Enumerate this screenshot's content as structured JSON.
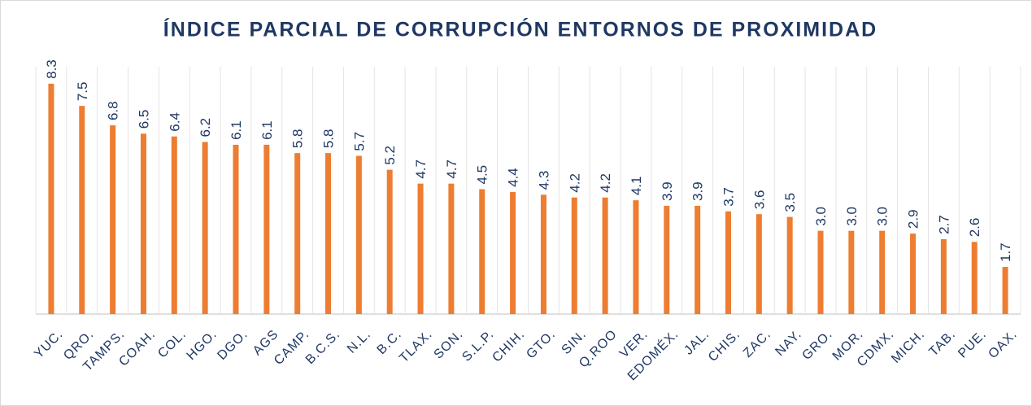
{
  "chart_data": {
    "type": "bar",
    "title": "ÍNDICE PARCIAL DE CORRUPCIÓN ENTORNOS DE PROXIMIDAD",
    "categories": [
      "YUC.",
      "QRO.",
      "TAMPS.",
      "COAH.",
      "COL.",
      "HGO.",
      "DGO.",
      "AGS",
      "CAMP.",
      "B.C.S.",
      "N.L.",
      "B.C.",
      "TLAX.",
      "SON.",
      "S.L.P.",
      "CHIH.",
      "GTO.",
      "SIN.",
      "Q.ROO",
      "VER.",
      "EDOMÉX.",
      "JAL.",
      "CHIS.",
      "ZAC.",
      "NAY.",
      "GRO.",
      "MOR.",
      "CDMX.",
      "MICH.",
      "TAB.",
      "PUE.",
      "OAX."
    ],
    "values": [
      8.3,
      7.5,
      6.8,
      6.5,
      6.4,
      6.2,
      6.1,
      6.1,
      5.8,
      5.8,
      5.7,
      5.2,
      4.7,
      4.7,
      4.5,
      4.4,
      4.3,
      4.2,
      4.2,
      4.1,
      3.9,
      3.9,
      3.7,
      3.6,
      3.5,
      3.0,
      3.0,
      3.0,
      2.9,
      2.7,
      2.6,
      1.7
    ],
    "value_labels": [
      "8.3",
      "7.5",
      "6.8",
      "6.5",
      "6.4",
      "6.2",
      "6.1",
      "6.1",
      "5.8",
      "5.8",
      "5.7",
      "5.2",
      "4.7",
      "4.7",
      "4.5",
      "4.4",
      "4.3",
      "4.2",
      "4.2",
      "4.1",
      "3.9",
      "3.9",
      "3.7",
      "3.6",
      "3.5",
      "3.0",
      "3.0",
      "3.0",
      "2.9",
      "2.7",
      "2.6",
      "1.7"
    ],
    "color": "#ed7d31",
    "ylim": [
      0,
      9
    ]
  }
}
